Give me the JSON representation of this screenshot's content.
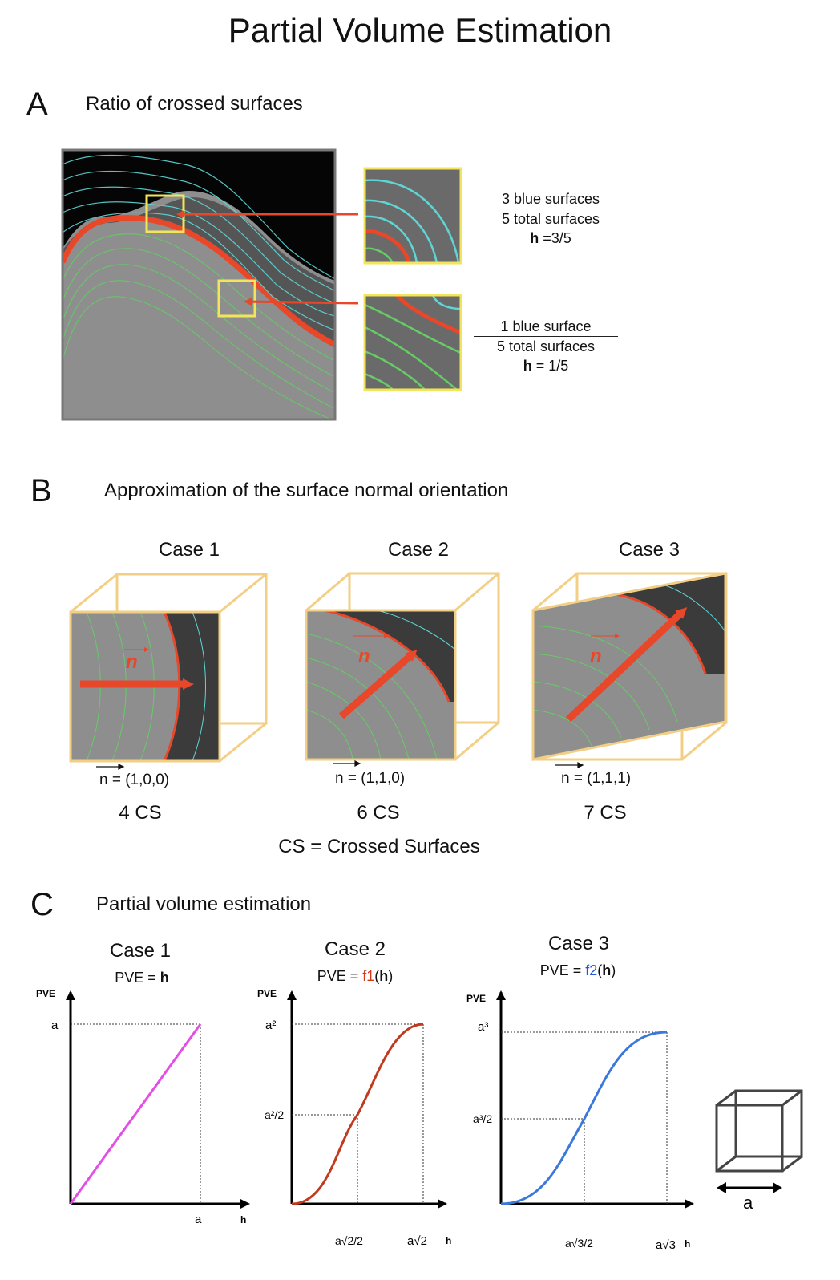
{
  "title": "Partial Volume Estimation",
  "section_a": {
    "letter": "A",
    "title": "Ratio of crossed surfaces",
    "fraction1": {
      "numerator": "3 blue surfaces",
      "denominator": "5 total surfaces",
      "h_label": "h",
      "h_value": " =3/5"
    },
    "fraction2": {
      "numerator": "1 blue surface",
      "denominator": "5 total surfaces",
      "h_label": "h",
      "h_value": " = 1/5"
    }
  },
  "section_b": {
    "letter": "B",
    "title": "Approximation of the surface normal orientation",
    "cases": [
      {
        "label": "Case 1",
        "normal_symbol": "n",
        "vector": "n = (1,0,0)",
        "cs": "4 CS"
      },
      {
        "label": "Case 2",
        "normal_symbol": "n",
        "vector": "n = (1,1,0)",
        "cs": "6 CS"
      },
      {
        "label": "Case 3",
        "normal_symbol": "n",
        "vector": "n = (1,1,1)",
        "cs": "7 CS"
      }
    ],
    "legend": "CS = Crossed Surfaces"
  },
  "section_c": {
    "letter": "C",
    "title": "Partial volume estimation",
    "graphs": [
      {
        "label": "Case 1",
        "formula_prefix": "PVE = ",
        "formula_func": "",
        "formula_arg": "h",
        "func_color": "#cc2200",
        "y_axis": "PVE",
        "x_axis": "h",
        "y_max": "a",
        "x_max": "a",
        "y_mid": "",
        "x_mid": ""
      },
      {
        "label": "Case 2",
        "formula_prefix": "PVE = ",
        "formula_func": "f1",
        "formula_arg": "h",
        "func_color": "#d0391c",
        "y_axis": "PVE",
        "x_axis": "h",
        "y_max": "a²",
        "x_max": "a√2",
        "y_mid": "a²/2",
        "x_mid": "a√2/2"
      },
      {
        "label": "Case 3",
        "formula_prefix": "PVE = ",
        "formula_func": "f2",
        "formula_arg": "h",
        "func_color": "#2255dd",
        "y_axis": "PVE",
        "x_axis": "h",
        "y_max": "a³",
        "x_max": "a√3",
        "y_mid": "a³/2",
        "x_mid": "a√3/2"
      }
    ],
    "cube_label": "a"
  },
  "colors": {
    "red": "#e8472a",
    "cyan": "#5fd6d6",
    "green": "#66cc66",
    "yellow": "#f2e55a",
    "cube_edge": "#f3cf86",
    "magenta": "#e34fe6",
    "brick": "#c03a1e",
    "blue": "#3b78dc"
  }
}
